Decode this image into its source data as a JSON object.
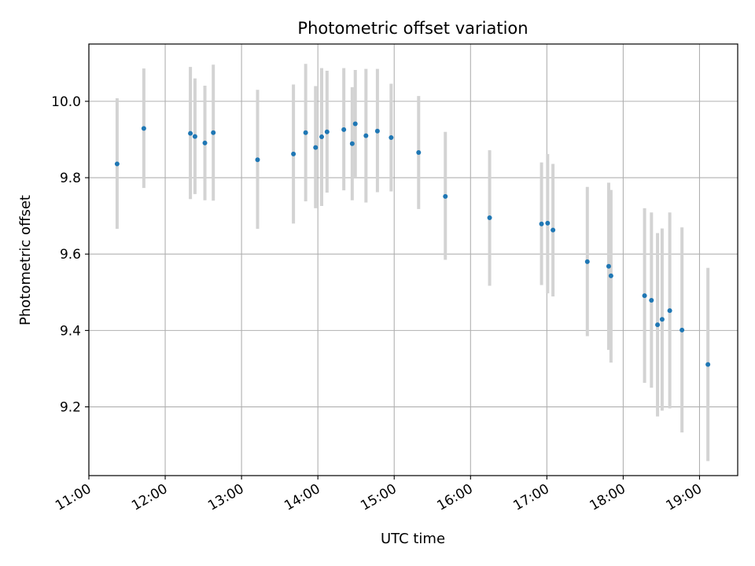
{
  "chart_data": {
    "type": "scatter",
    "title": "Photometric offset variation",
    "xlabel": "UTC time",
    "ylabel": "Photometric offset",
    "x_unit": "hours",
    "xlim": [
      11.0,
      19.5
    ],
    "ylim": [
      9.02,
      10.15
    ],
    "x_ticks": [
      11,
      12,
      13,
      14,
      15,
      16,
      17,
      18,
      19
    ],
    "x_tick_labels": [
      "11:00",
      "12:00",
      "13:00",
      "14:00",
      "15:00",
      "16:00",
      "17:00",
      "18:00",
      "19:00"
    ],
    "y_ticks": [
      9.2,
      9.4,
      9.6,
      9.8,
      10.0
    ],
    "y_tick_labels": [
      "9.2",
      "9.4",
      "9.6",
      "9.8",
      "10.0"
    ],
    "grid": true,
    "colors": {
      "points": "#1f77b4",
      "errorbars": "#d3d3d3",
      "grid": "#b0b0b0"
    },
    "points": [
      {
        "x": 11.37,
        "y": 9.836,
        "low": 9.666,
        "high": 10.008
      },
      {
        "x": 11.72,
        "y": 9.929,
        "low": 9.773,
        "high": 10.086
      },
      {
        "x": 12.33,
        "y": 9.916,
        "low": 9.744,
        "high": 10.09
      },
      {
        "x": 12.39,
        "y": 9.908,
        "low": 9.757,
        "high": 10.06
      },
      {
        "x": 12.52,
        "y": 9.891,
        "low": 9.741,
        "high": 10.041
      },
      {
        "x": 12.63,
        "y": 9.918,
        "low": 9.74,
        "high": 10.096
      },
      {
        "x": 13.21,
        "y": 9.847,
        "low": 9.666,
        "high": 10.03
      },
      {
        "x": 13.68,
        "y": 9.862,
        "low": 9.68,
        "high": 10.044
      },
      {
        "x": 13.84,
        "y": 9.918,
        "low": 9.738,
        "high": 10.098
      },
      {
        "x": 13.97,
        "y": 9.879,
        "low": 9.72,
        "high": 10.04
      },
      {
        "x": 14.05,
        "y": 9.907,
        "low": 9.726,
        "high": 10.087
      },
      {
        "x": 14.12,
        "y": 9.92,
        "low": 9.761,
        "high": 10.08
      },
      {
        "x": 14.34,
        "y": 9.926,
        "low": 9.767,
        "high": 10.087
      },
      {
        "x": 14.45,
        "y": 9.889,
        "low": 9.741,
        "high": 10.037
      },
      {
        "x": 14.49,
        "y": 9.941,
        "low": 9.8,
        "high": 10.082
      },
      {
        "x": 14.63,
        "y": 9.91,
        "low": 9.735,
        "high": 10.085
      },
      {
        "x": 14.78,
        "y": 9.922,
        "low": 9.762,
        "high": 10.085
      },
      {
        "x": 14.96,
        "y": 9.905,
        "low": 9.764,
        "high": 10.046
      },
      {
        "x": 15.32,
        "y": 9.866,
        "low": 9.718,
        "high": 10.014
      },
      {
        "x": 15.67,
        "y": 9.751,
        "low": 9.585,
        "high": 9.92
      },
      {
        "x": 16.25,
        "y": 9.695,
        "low": 9.517,
        "high": 9.872
      },
      {
        "x": 16.93,
        "y": 9.679,
        "low": 9.519,
        "high": 9.84
      },
      {
        "x": 17.01,
        "y": 9.681,
        "low": 9.497,
        "high": 9.862
      },
      {
        "x": 17.08,
        "y": 9.663,
        "low": 9.489,
        "high": 9.836
      },
      {
        "x": 17.53,
        "y": 9.58,
        "low": 9.385,
        "high": 9.776
      },
      {
        "x": 17.81,
        "y": 9.568,
        "low": 9.349,
        "high": 9.787
      },
      {
        "x": 17.84,
        "y": 9.543,
        "low": 9.316,
        "high": 9.768
      },
      {
        "x": 18.28,
        "y": 9.491,
        "low": 9.263,
        "high": 9.72
      },
      {
        "x": 18.37,
        "y": 9.479,
        "low": 9.25,
        "high": 9.709
      },
      {
        "x": 18.45,
        "y": 9.415,
        "low": 9.175,
        "high": 9.655
      },
      {
        "x": 18.51,
        "y": 9.429,
        "low": 9.19,
        "high": 9.667
      },
      {
        "x": 18.61,
        "y": 9.452,
        "low": 9.196,
        "high": 9.709
      },
      {
        "x": 18.77,
        "y": 9.401,
        "low": 9.133,
        "high": 9.67
      },
      {
        "x": 19.11,
        "y": 9.311,
        "low": 9.058,
        "high": 9.564
      }
    ]
  }
}
